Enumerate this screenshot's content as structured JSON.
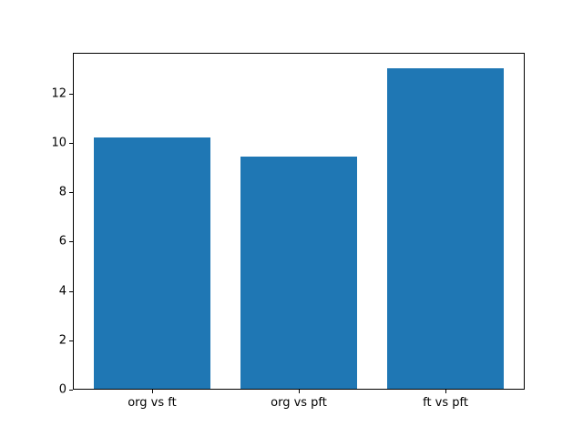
{
  "chart_data": {
    "type": "bar",
    "categories": [
      "org vs ft",
      "org vs pft",
      "ft vs pft"
    ],
    "values": [
      10.2,
      9.4,
      13.0
    ],
    "title": "",
    "xlabel": "",
    "ylabel": "",
    "ylim": [
      0,
      13.65
    ],
    "yticks": [
      0,
      2,
      4,
      6,
      8,
      10,
      12
    ],
    "bar_color": "#1f77b4",
    "axis_color": "#000000",
    "grid": false,
    "legend": null
  }
}
